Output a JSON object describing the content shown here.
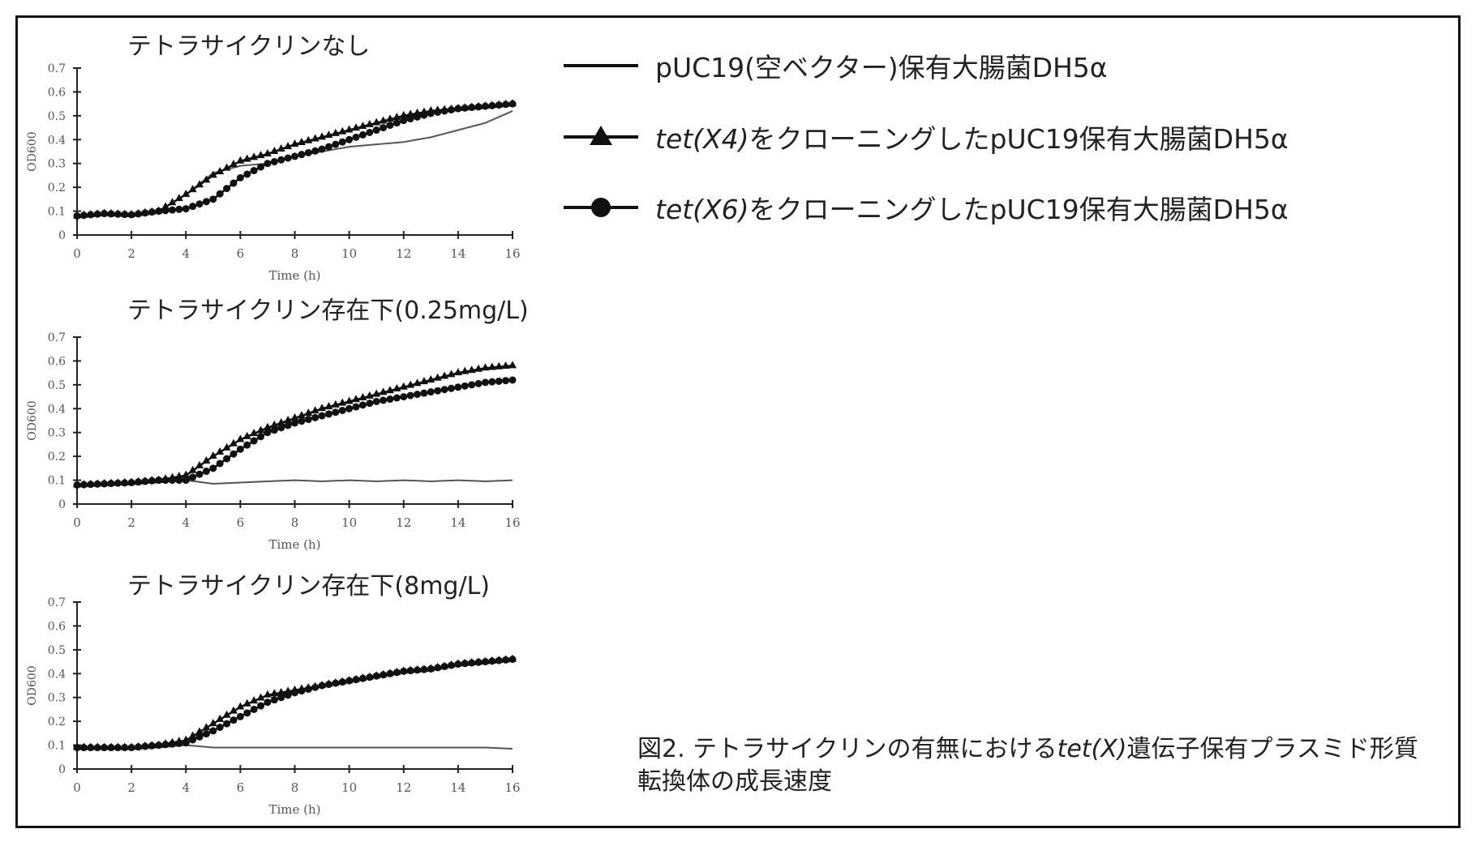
{
  "legend": [
    {
      "italic": "",
      "text": "pUC19(空ベクター)保有大腸菌DH5α",
      "marker": "none"
    },
    {
      "italic": "tet(X4)",
      "text": "をクローニングしたpUC19保有大腸菌DH5α",
      "marker": "triangle"
    },
    {
      "italic": "tet(X6)",
      "text": "をクローニングしたpUC19保有大腸菌DH5α",
      "marker": "circle"
    }
  ],
  "caption": {
    "pre": "図2. テトラサイクリンの有無における",
    "italic": "tet(X)",
    "post": "遺伝子保有プラスミド形質転換体の成長速度"
  },
  "chart_data": [
    {
      "type": "line",
      "title": "テトラサイクリンなし",
      "xlabel": "Time (h)",
      "ylabel": "OD600",
      "xlim": [
        0,
        16
      ],
      "ylim": [
        0,
        0.7
      ],
      "xticks": [
        "0",
        "2",
        "4",
        "6",
        "8",
        "10",
        "12",
        "14",
        "16"
      ],
      "yticks": [
        "0",
        "0.1",
        "0.2",
        "0.3",
        "0.4",
        "0.5",
        "0.6",
        "0.7"
      ],
      "x": [
        0,
        1,
        2,
        3,
        4,
        5,
        6,
        7,
        8,
        9,
        10,
        11,
        12,
        13,
        14,
        15,
        16
      ],
      "series": [
        {
          "name": "pUC19(空ベクター)保有大腸菌DH5α",
          "values": [
            0.08,
            0.085,
            0.085,
            0.1,
            0.17,
            0.26,
            0.29,
            0.3,
            0.33,
            0.35,
            0.37,
            0.38,
            0.39,
            0.41,
            0.44,
            0.47,
            0.52
          ]
        },
        {
          "name": "tet(X4)をクローニングしたpUC19保有大腸菌DH5α",
          "values": [
            0.08,
            0.09,
            0.085,
            0.1,
            0.17,
            0.25,
            0.31,
            0.34,
            0.38,
            0.41,
            0.44,
            0.47,
            0.5,
            0.52,
            0.53,
            0.54,
            0.55
          ]
        },
        {
          "name": "tet(X6)をクローニングしたpUC19保有大腸菌DH5α",
          "values": [
            0.08,
            0.09,
            0.085,
            0.1,
            0.11,
            0.15,
            0.24,
            0.3,
            0.33,
            0.36,
            0.4,
            0.44,
            0.48,
            0.51,
            0.53,
            0.54,
            0.55
          ]
        }
      ]
    },
    {
      "type": "line",
      "title": "テトラサイクリン存在下(0.25mg/L)",
      "xlabel": "Time (h)",
      "ylabel": "OD600",
      "xlim": [
        0,
        16
      ],
      "ylim": [
        0,
        0.7
      ],
      "xticks": [
        "0",
        "2",
        "4",
        "6",
        "8",
        "10",
        "12",
        "14",
        "16"
      ],
      "yticks": [
        "0",
        "0.1",
        "0.2",
        "0.3",
        "0.4",
        "0.5",
        "0.6",
        "0.7"
      ],
      "x": [
        0,
        1,
        2,
        3,
        4,
        5,
        6,
        7,
        8,
        9,
        10,
        11,
        12,
        13,
        14,
        15,
        16
      ],
      "series": [
        {
          "name": "pUC19(空ベクター)保有大腸菌DH5α",
          "values": [
            0.08,
            0.085,
            0.09,
            0.09,
            0.1,
            0.085,
            0.09,
            0.095,
            0.1,
            0.095,
            0.1,
            0.095,
            0.1,
            0.095,
            0.1,
            0.095,
            0.1
          ]
        },
        {
          "name": "tet(X4)をクローニングしたpUC19保有大腸菌DH5α",
          "values": [
            0.08,
            0.085,
            0.09,
            0.1,
            0.12,
            0.2,
            0.27,
            0.32,
            0.36,
            0.4,
            0.43,
            0.46,
            0.49,
            0.52,
            0.55,
            0.57,
            0.58
          ]
        },
        {
          "name": "tet(X6)をクローニングしたpUC19保有大腸菌DH5α",
          "values": [
            0.08,
            0.085,
            0.09,
            0.1,
            0.1,
            0.15,
            0.23,
            0.3,
            0.34,
            0.37,
            0.4,
            0.43,
            0.45,
            0.47,
            0.49,
            0.51,
            0.52
          ]
        }
      ]
    },
    {
      "type": "line",
      "title": "テトラサイクリン存在下(8mg/L)",
      "xlabel": "Time (h)",
      "ylabel": "OD600",
      "xlim": [
        0,
        16
      ],
      "ylim": [
        0,
        0.7
      ],
      "xticks": [
        "0",
        "2",
        "4",
        "6",
        "8",
        "10",
        "12",
        "14",
        "16"
      ],
      "yticks": [
        "0",
        "0.1",
        "0.2",
        "0.3",
        "0.4",
        "0.5",
        "0.6",
        "0.7"
      ],
      "x": [
        0,
        1,
        2,
        3,
        4,
        5,
        6,
        7,
        8,
        9,
        10,
        11,
        12,
        13,
        14,
        15,
        16
      ],
      "series": [
        {
          "name": "pUC19(空ベクター)保有大腸菌DH5α",
          "values": [
            0.09,
            0.09,
            0.09,
            0.09,
            0.1,
            0.09,
            0.09,
            0.09,
            0.09,
            0.09,
            0.09,
            0.09,
            0.09,
            0.09,
            0.09,
            0.09,
            0.085
          ]
        },
        {
          "name": "tet(X4)をクローニングしたpUC19保有大腸菌DH5α",
          "values": [
            0.09,
            0.09,
            0.09,
            0.1,
            0.12,
            0.19,
            0.26,
            0.31,
            0.33,
            0.35,
            0.37,
            0.39,
            0.41,
            0.42,
            0.44,
            0.45,
            0.46
          ]
        },
        {
          "name": "tet(X6)をクローニングしたpUC19保有大腸菌DH5α",
          "values": [
            0.09,
            0.09,
            0.09,
            0.1,
            0.11,
            0.16,
            0.22,
            0.28,
            0.32,
            0.35,
            0.37,
            0.39,
            0.41,
            0.42,
            0.44,
            0.45,
            0.46
          ]
        }
      ]
    }
  ]
}
